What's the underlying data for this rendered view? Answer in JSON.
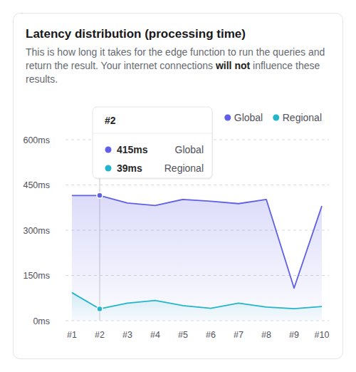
{
  "chart_data": {
    "type": "area",
    "title": "Latency distribution (processing time)",
    "subtitle": [
      "This is how long it takes for the edge function to run the queries and return the result. Your internet connections ",
      "will not",
      " influence these results."
    ],
    "categories": [
      "#1",
      "#2",
      "#3",
      "#4",
      "#5",
      "#6",
      "#7",
      "#8",
      "#9",
      "#10"
    ],
    "series": [
      {
        "name": "Global",
        "color": "#5f60e6",
        "values": [
          415,
          415,
          390,
          382,
          402,
          396,
          388,
          402,
          108,
          380
        ]
      },
      {
        "name": "Regional",
        "color": "#22b5cc",
        "values": [
          93,
          39,
          58,
          67,
          50,
          41,
          58,
          45,
          40,
          47
        ]
      }
    ],
    "ylim": [
      0,
      600
    ],
    "yticks": [
      {
        "value": 0,
        "label": "0ms"
      },
      {
        "value": 150,
        "label": "150ms"
      },
      {
        "value": 300,
        "label": "300ms"
      },
      {
        "value": 450,
        "label": "450ms"
      },
      {
        "value": 600,
        "label": "600ms"
      }
    ],
    "grid": true,
    "legend": "top-right",
    "tooltip": {
      "category": "#2",
      "labels": [
        "415ms",
        "39ms"
      ]
    }
  }
}
